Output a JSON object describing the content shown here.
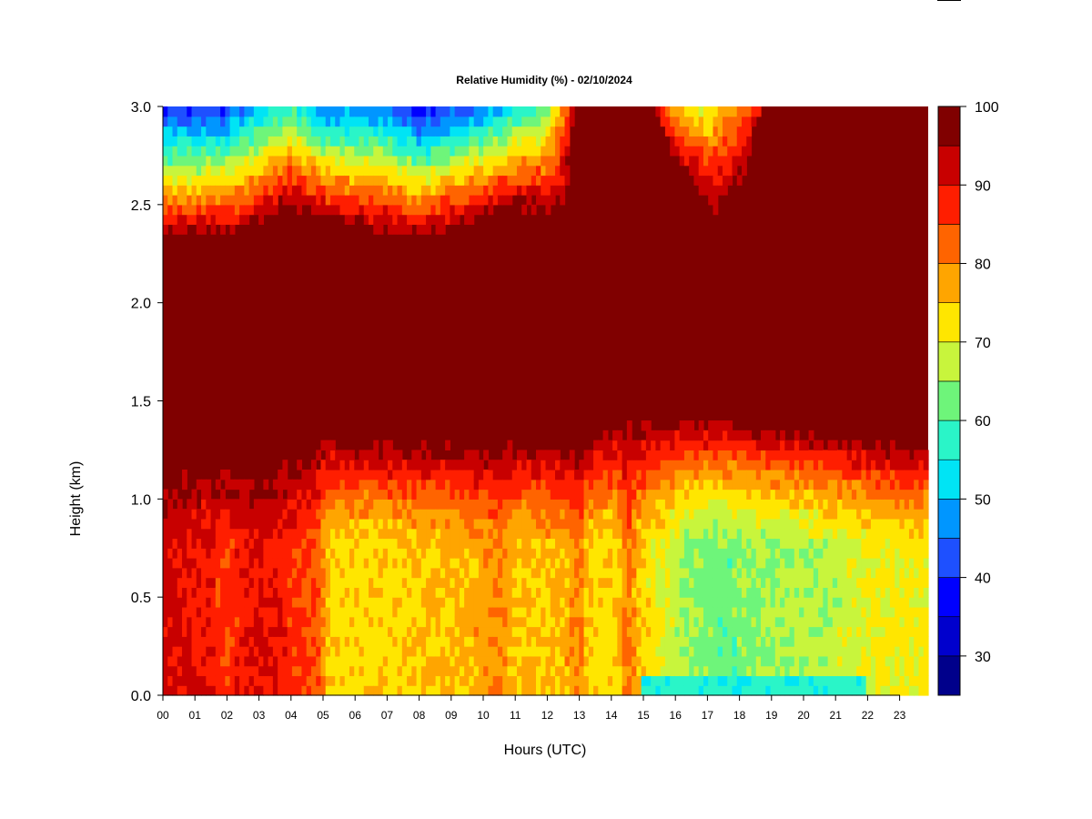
{
  "chart_data": {
    "type": "heatmap",
    "title": "Relative Humidity (%) - 02/10/2024",
    "xlabel": "Hours (UTC)",
    "ylabel": "Height (km)",
    "x_tick_labels": [
      "00",
      "01",
      "02",
      "03",
      "04",
      "05",
      "06",
      "07",
      "08",
      "09",
      "10",
      "11",
      "12",
      "13",
      "14",
      "15",
      "16",
      "17",
      "18",
      "19",
      "20",
      "21",
      "22",
      "23"
    ],
    "xlim": [
      0,
      23.9
    ],
    "y_tick_labels": [
      "0.0",
      "0.5",
      "1.0",
      "1.5",
      "2.0",
      "2.5",
      "3.0"
    ],
    "y_ticks": [
      0,
      0.5,
      1.0,
      1.5,
      2.0,
      2.5,
      3.0
    ],
    "ylim": [
      0,
      3.0
    ],
    "colorbar": {
      "range": [
        25,
        100
      ],
      "tick_labels": [
        "30",
        "40",
        "50",
        "60",
        "70",
        "80",
        "90",
        "100"
      ],
      "ticks": [
        30,
        40,
        50,
        60,
        70,
        80,
        90,
        100
      ],
      "levels": [
        25,
        30,
        35,
        40,
        45,
        50,
        55,
        60,
        65,
        70,
        75,
        80,
        85,
        90,
        95,
        100
      ],
      "colors": [
        "#00008b",
        "#0000cd",
        "#0000ff",
        "#1e50ff",
        "#0096ff",
        "#00e4f5",
        "#2af5c8",
        "#6ef57a",
        "#c8f53c",
        "#ffe600",
        "#ffa500",
        "#ff6400",
        "#ff1e00",
        "#c80000",
        "#800000"
      ]
    },
    "grid": false,
    "field_description_points": {
      "surface_layer_rh": "90-100 near surface 00-05 UTC; 70-80 from 05-14 UTC; 55-65 from 16-21 UTC",
      "saturated_layer": "100 between ~1.3 km and ~2.3 km all day; extends to 3.0 km after 13 UTC",
      "top_dry_layer": "30-45 near 3.0 km from 00-12 UTC"
    }
  }
}
